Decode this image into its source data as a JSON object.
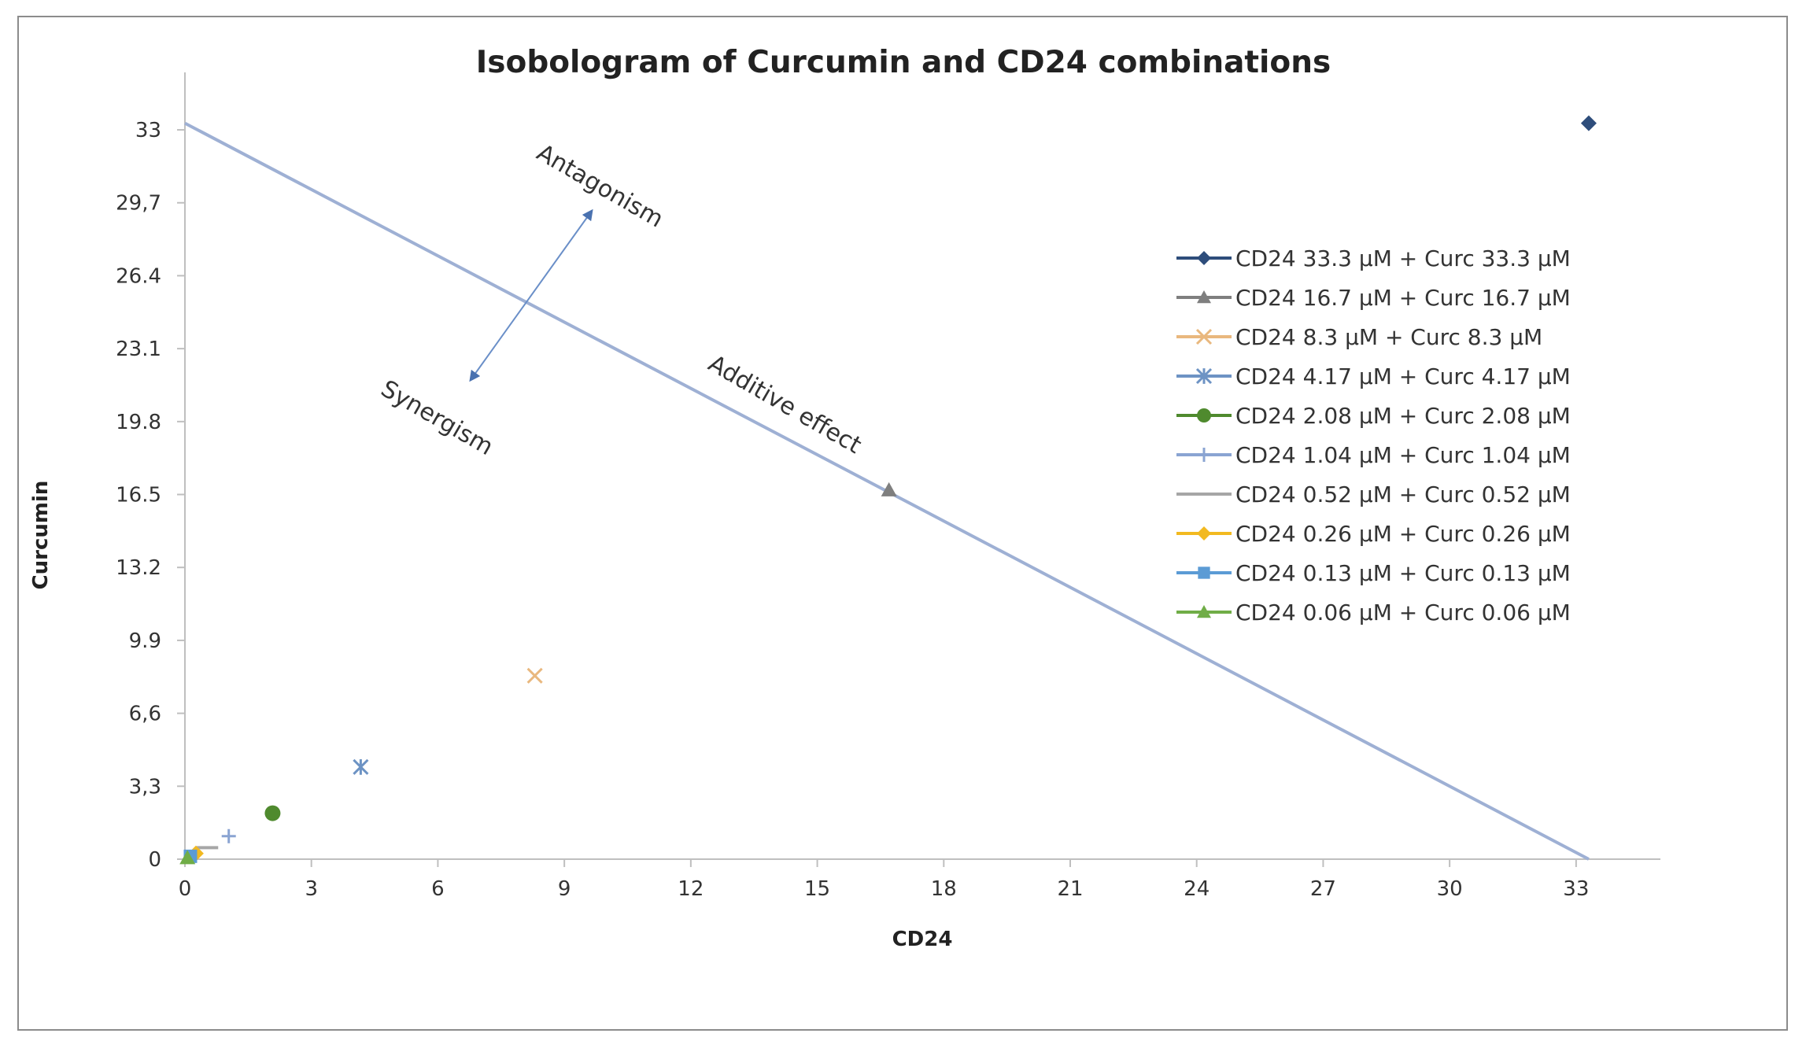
{
  "chart_data": {
    "type": "scatter",
    "title": "Isobologram of Curcumin and CD24 combinations",
    "xlabel": "CD24",
    "ylabel": "Curcumin",
    "xlim": [
      0,
      35
    ],
    "ylim": [
      0,
      35.6
    ],
    "xticks": [
      0,
      3,
      6,
      9,
      12,
      15,
      18,
      21,
      24,
      27,
      30,
      33
    ],
    "yticks": [
      {
        "value": 0,
        "label": "0"
      },
      {
        "value": 3.3,
        "label": "3,3"
      },
      {
        "value": 6.6,
        "label": "6,6"
      },
      {
        "value": 9.9,
        "label": "9.9"
      },
      {
        "value": 13.2,
        "label": "13.2"
      },
      {
        "value": 16.5,
        "label": "16.5"
      },
      {
        "value": 19.8,
        "label": "19.8"
      },
      {
        "value": 23.1,
        "label": "23.1"
      },
      {
        "value": 26.4,
        "label": "26.4"
      },
      {
        "value": 29.7,
        "label": "29,7"
      },
      {
        "value": 33,
        "label": "33"
      }
    ],
    "additive_line": {
      "x": [
        0,
        33.3
      ],
      "y": [
        33.3,
        0
      ],
      "color": "#9eb0d4"
    },
    "series": [
      {
        "name": "CD24 33.3 µM + Curc 33.3 µM",
        "x": 33.3,
        "y": 33.3,
        "marker": "diamond",
        "color": "#2e4d7b"
      },
      {
        "name": "CD24 16.7 µM + Curc 16.7 µM",
        "x": 16.7,
        "y": 16.7,
        "marker": "triangle",
        "color": "#7f7f7f"
      },
      {
        "name": "CD24 8.3 µM + Curc 8.3 µM",
        "x": 8.3,
        "y": 8.3,
        "marker": "x",
        "color": "#e9b87e"
      },
      {
        "name": "CD24 4.17 µM + Curc 4.17 µM",
        "x": 4.17,
        "y": 4.17,
        "marker": "star",
        "color": "#6d93c4"
      },
      {
        "name": "CD24 2.08 µM + Curc 2.08 µM",
        "x": 2.08,
        "y": 2.08,
        "marker": "circle",
        "color": "#4f8a2e"
      },
      {
        "name": "CD24 1.04 µM + Curc 1.04 µM",
        "x": 1.04,
        "y": 1.04,
        "marker": "plus",
        "color": "#8aa4d2"
      },
      {
        "name": "CD24 0.52 µM + Curc 0.52 µM",
        "x": 0.52,
        "y": 0.52,
        "marker": "dash",
        "color": "#a6a6a6"
      },
      {
        "name": "CD24 0.26 µM + Curc 0.26 µM",
        "x": 0.26,
        "y": 0.26,
        "marker": "diamond",
        "color": "#f2b920"
      },
      {
        "name": "CD24 0.13 µM + Curc 0.13 µM",
        "x": 0.13,
        "y": 0.13,
        "marker": "square",
        "color": "#5b9bd5"
      },
      {
        "name": "CD24 0.06 µM + Curc 0.06 µM",
        "x": 0.06,
        "y": 0.06,
        "marker": "triangle",
        "color": "#70ad47"
      }
    ],
    "annotations": {
      "antagonism": "Antagonism",
      "synergism": "Synergism",
      "additive": "Additive effect"
    },
    "legend_position": "right",
    "grid": false
  }
}
